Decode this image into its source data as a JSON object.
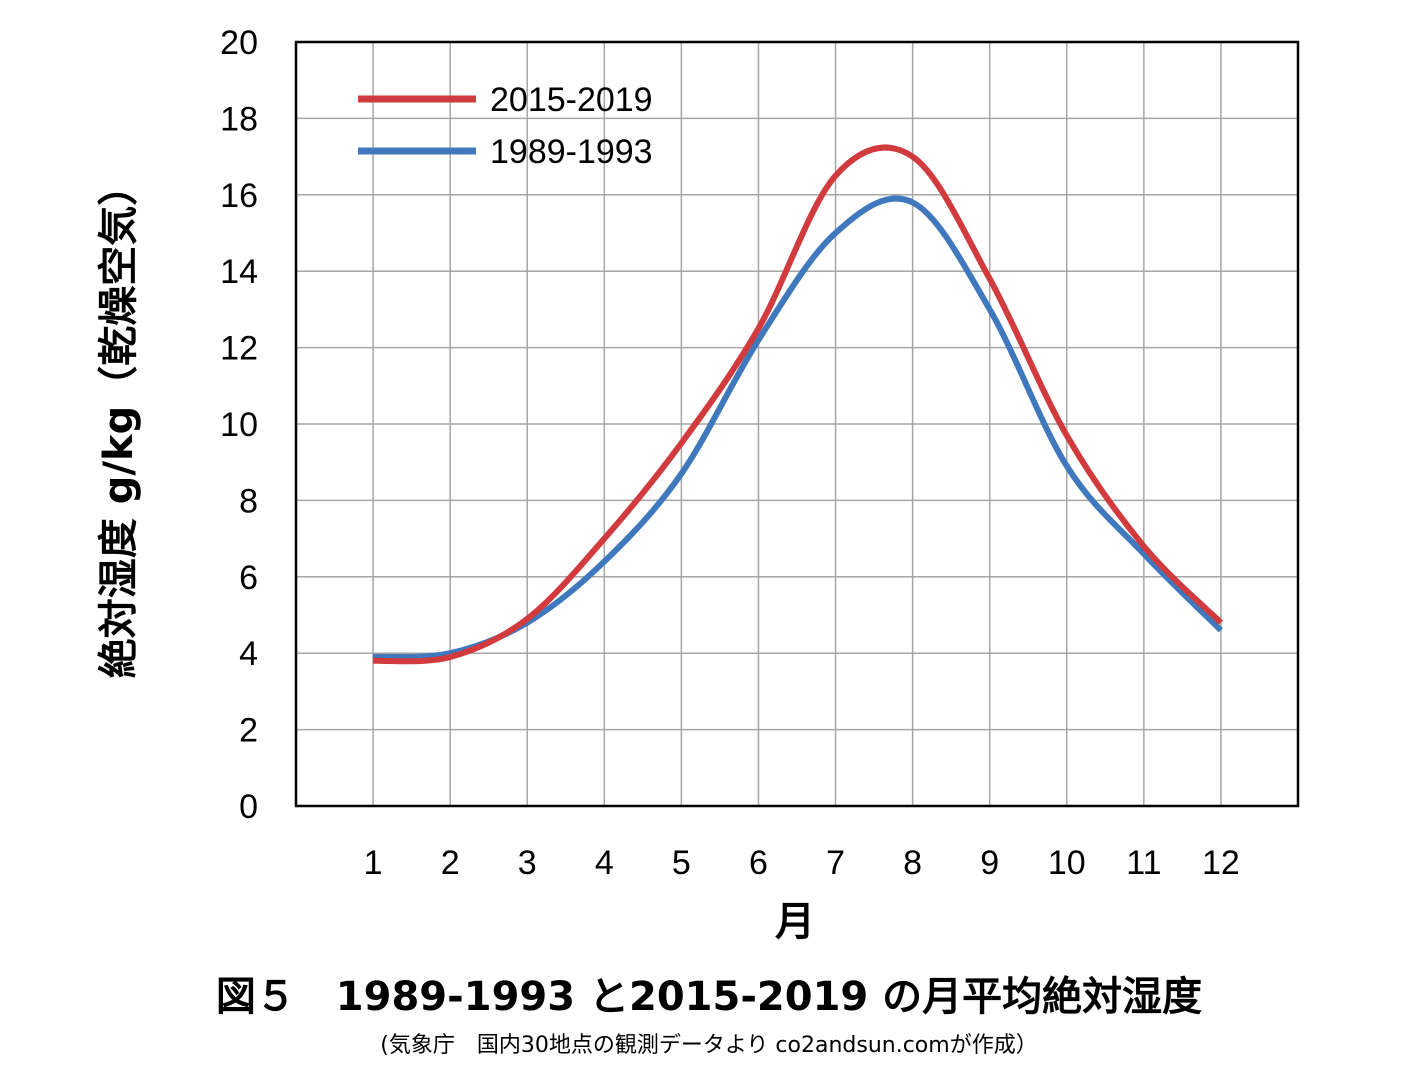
{
  "chart_data": {
    "type": "line",
    "x": [
      1,
      2,
      3,
      4,
      5,
      6,
      7,
      8,
      9,
      10,
      11,
      12
    ],
    "series": [
      {
        "name": "2015-2019",
        "color": "#d23b3e",
        "values": [
          3.8,
          3.9,
          4.9,
          7.0,
          9.5,
          12.5,
          16.5,
          17.0,
          13.8,
          9.7,
          6.8,
          4.8
        ]
      },
      {
        "name": "1989-1993",
        "color": "#4078be",
        "values": [
          3.9,
          4.0,
          4.8,
          6.4,
          8.7,
          12.2,
          15.0,
          15.8,
          13.0,
          8.9,
          6.6,
          4.6
        ]
      }
    ],
    "xlabel": "月",
    "ylabel": "絶対湿度 g/kg（乾燥空気）",
    "x_tick_labels": [
      "1",
      "2",
      "3",
      "4",
      "5",
      "6",
      "7",
      "8",
      "9",
      "10",
      "11",
      "12"
    ],
    "y_ticks": [
      0,
      2,
      4,
      6,
      8,
      10,
      12,
      14,
      16,
      18,
      20
    ],
    "ylim": [
      0,
      20
    ],
    "xlim": [
      0,
      13
    ],
    "grid": true,
    "legend_position": "top-left"
  },
  "caption": {
    "title": "図５　1989-1993 と2015-2019 の月平均絶対湿度",
    "source": "(気象庁　国内30地点の観測データより co2andsun.comが作成）"
  }
}
